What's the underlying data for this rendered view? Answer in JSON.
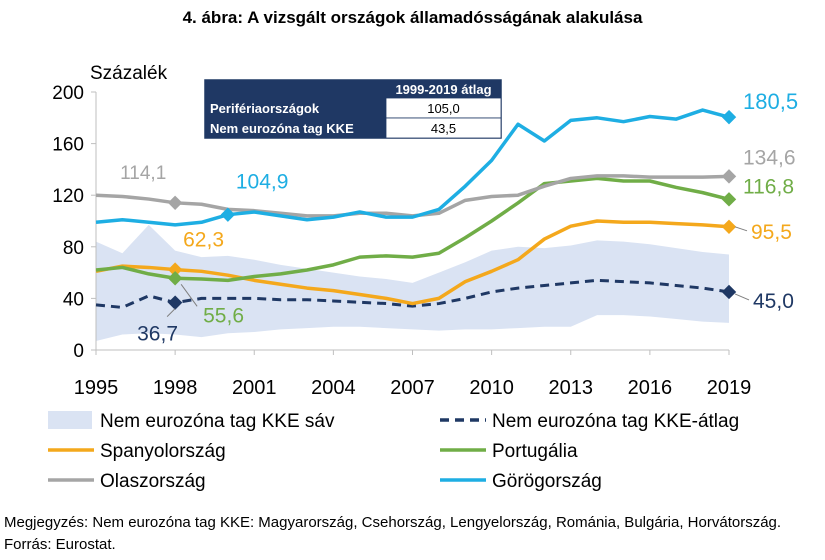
{
  "title": "4. ábra: A vizsgált országok államadósságának alakulása",
  "note": "Megjegyzés: Nem eurozóna tag KKE: Magyarország, Csehország, Lengyelország, Románia, Bulgária, Horvátország. Forrás: Eurostat.",
  "chart_data": {
    "type": "line",
    "ylabel": "Százalék",
    "ylim": [
      0,
      200
    ],
    "yticks": [
      0,
      40,
      80,
      120,
      160,
      200
    ],
    "xlim": [
      1995,
      2019
    ],
    "xticks": [
      1995,
      1998,
      2001,
      2004,
      2007,
      2010,
      2013,
      2016,
      2019
    ],
    "x": [
      1995,
      1996,
      1997,
      1998,
      1999,
      2000,
      2001,
      2002,
      2003,
      2004,
      2005,
      2006,
      2007,
      2008,
      2009,
      2010,
      2011,
      2012,
      2013,
      2014,
      2015,
      2016,
      2017,
      2018,
      2019
    ],
    "band": {
      "name": "Nem eurozóna tag KKE sáv",
      "color": "#dae3f3",
      "upper": [
        84,
        75,
        97,
        77,
        72,
        73,
        70,
        66,
        63,
        60,
        57,
        55,
        52,
        60,
        68,
        77,
        80,
        79,
        81,
        85,
        84,
        82,
        79,
        76,
        74
      ],
      "lower": [
        7,
        12,
        13,
        12,
        10,
        13,
        14,
        16,
        17,
        18,
        18,
        17,
        16,
        15,
        16,
        16,
        17,
        18,
        18,
        27,
        27,
        26,
        24,
        22,
        21
      ]
    },
    "series": [
      {
        "name": "Nem eurozóna tag KKE-átlag",
        "color": "#1f3864",
        "dashed": true,
        "values": [
          35,
          33,
          42,
          36.7,
          40,
          40,
          40,
          39,
          39,
          38,
          37,
          36,
          34,
          36,
          40,
          45,
          48,
          50,
          52,
          54,
          53,
          52,
          50,
          48,
          45.0
        ]
      },
      {
        "name": "Spanyolország",
        "color": "#f4a81c",
        "values": [
          61,
          65,
          64,
          62.3,
          61,
          58,
          54,
          51,
          48,
          46,
          43,
          40,
          36,
          40,
          53,
          61,
          70,
          86,
          96,
          100,
          99,
          99,
          98,
          97,
          95.5
        ]
      },
      {
        "name": "Portugália",
        "color": "#70ad47",
        "values": [
          62,
          64,
          59,
          55.6,
          55,
          54,
          57,
          59,
          62,
          66,
          72,
          73,
          72,
          75,
          87,
          100,
          114,
          129,
          131,
          133,
          131,
          131,
          126,
          122,
          116.8
        ]
      },
      {
        "name": "Olaszország",
        "color": "#a5a5a5",
        "values": [
          120,
          119,
          117,
          114.1,
          113,
          109,
          108,
          106,
          104,
          104,
          106,
          106,
          104,
          106,
          116,
          119,
          120,
          127,
          133,
          135,
          135,
          134,
          134,
          134,
          134.6
        ]
      },
      {
        "name": "Görögország",
        "color": "#1eaee3",
        "values": [
          99,
          101,
          99,
          97,
          99,
          104.9,
          107,
          104,
          101,
          103,
          107,
          103,
          103,
          109,
          127,
          147,
          175,
          162,
          178,
          180,
          177,
          181,
          179,
          186,
          180.5
        ]
      }
    ],
    "markers": [
      {
        "series": "Olaszország",
        "x": 1998,
        "value": "114,1",
        "color": "#a5a5a5"
      },
      {
        "series": "Görögország",
        "x": 2000,
        "value": "104,9",
        "color": "#1eaee3"
      },
      {
        "series": "Spanyolország",
        "x": 1998,
        "value": "62,3",
        "color": "#f4a81c"
      },
      {
        "series": "Portugália",
        "x": 1998,
        "value": "55,6",
        "color": "#70ad47"
      },
      {
        "series": "Nem eurozóna tag KKE-átlag",
        "x": 1998,
        "value": "36,7",
        "color": "#1f3864"
      },
      {
        "series": "Görögország",
        "x": 2019,
        "value": "180,5",
        "color": "#1eaee3"
      },
      {
        "series": "Olaszország",
        "x": 2019,
        "value": "134,6",
        "color": "#a5a5a5"
      },
      {
        "series": "Portugália",
        "x": 2019,
        "value": "116,8",
        "color": "#70ad47"
      },
      {
        "series": "Spanyolország",
        "x": 2019,
        "value": "95,5",
        "color": "#f4a81c"
      },
      {
        "series": "Nem eurozóna tag KKE-átlag",
        "x": 2019,
        "value": "45,0",
        "color": "#1f3864"
      }
    ],
    "inset_table": {
      "header": "1999-2019 átlag",
      "rows": [
        {
          "label": "Perifériaországok",
          "value": "105,0"
        },
        {
          "label": "Nem eurozóna tag KKE",
          "value": "43,5"
        }
      ]
    },
    "legend": [
      {
        "name": "Nem eurozóna tag KKE sáv",
        "style": "band",
        "color": "#dae3f3"
      },
      {
        "name": "Nem eurozóna tag KKE-átlag",
        "style": "dashed",
        "color": "#1f3864"
      },
      {
        "name": "Spanyolország",
        "style": "line",
        "color": "#f4a81c"
      },
      {
        "name": "Portugália",
        "style": "line",
        "color": "#70ad47"
      },
      {
        "name": "Olaszország",
        "style": "line",
        "color": "#a5a5a5"
      },
      {
        "name": "Görögország",
        "style": "line",
        "color": "#1eaee3"
      }
    ],
    "legend_position": "bottom",
    "grid": false
  }
}
